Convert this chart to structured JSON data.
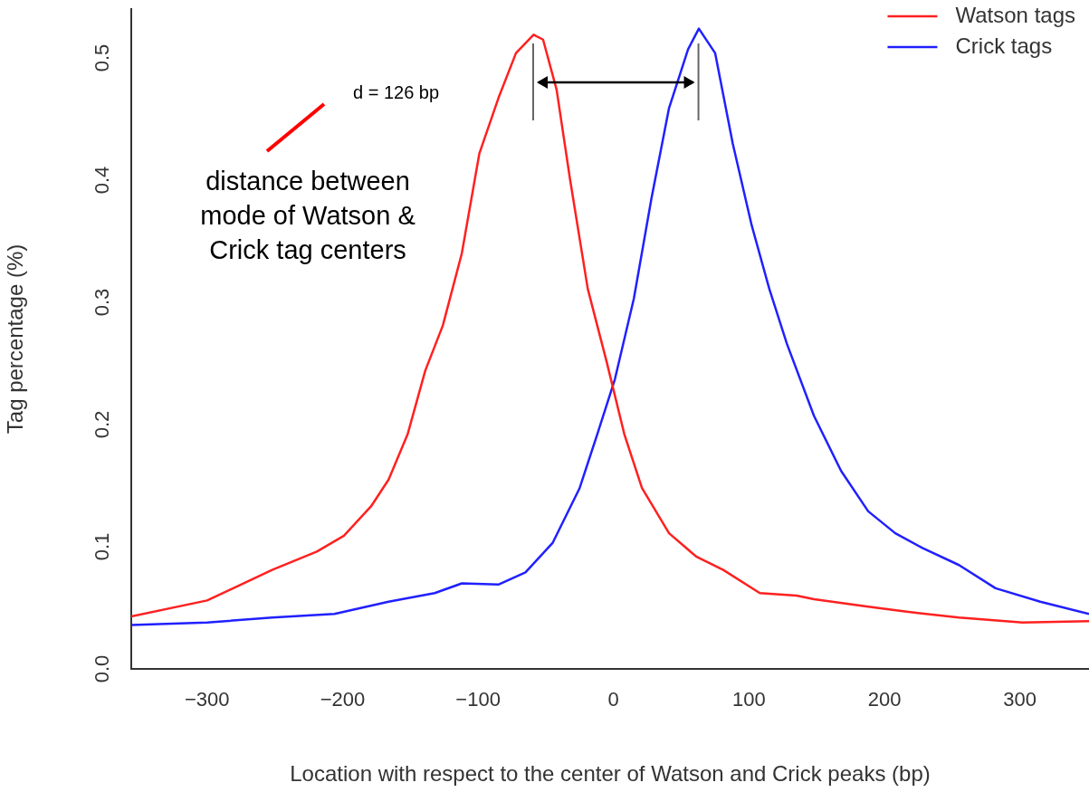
{
  "chart_data": {
    "type": "line",
    "xlabel": "Location with respect to the center of Watson and Crick peaks (bp)",
    "ylabel": "Tag percentage (%)",
    "xlim": [
      -356,
      351
    ],
    "xticks": [
      -300,
      -200,
      -100,
      0,
      100,
      200,
      300
    ],
    "ylim": [
      0,
      0.54
    ],
    "yticks": [
      {
        "value": 0,
        "label": "0.0"
      },
      0.1,
      0.2,
      0.3,
      0.4,
      0.5
    ],
    "legend": "top right",
    "grid": false,
    "marker": "none",
    "line_style": "solid",
    "annotations": [
      "d = 126 bp",
      "distance between mode of Watson & Crick tag centers"
    ],
    "series": [
      {
        "name": "Watson tags",
        "color": "#ff2020",
        "x": [
          -356,
          -300,
          -252,
          -219,
          -199,
          -179,
          -166,
          -152,
          -139,
          -126,
          -112,
          -99,
          -85,
          -72,
          -59,
          -52,
          -42,
          -32,
          -19,
          -5,
          8,
          21,
          41,
          61,
          81,
          108,
          135,
          148,
          188,
          215,
          255,
          302,
          351
        ],
        "values": [
          0.043,
          0.056,
          0.081,
          0.096,
          0.109,
          0.133,
          0.155,
          0.192,
          0.244,
          0.281,
          0.34,
          0.422,
          0.467,
          0.504,
          0.519,
          0.515,
          0.474,
          0.4,
          0.311,
          0.251,
          0.192,
          0.148,
          0.111,
          0.092,
          0.081,
          0.062,
          0.06,
          0.057,
          0.051,
          0.047,
          0.042,
          0.038,
          0.039
        ]
      },
      {
        "name": "Crick tags",
        "color": "#2020ff",
        "x": [
          -356,
          -300,
          -252,
          -206,
          -166,
          -132,
          -112,
          -85,
          -65,
          -45,
          -25,
          -12,
          1,
          15,
          28,
          41,
          55,
          63,
          75,
          88,
          102,
          115,
          128,
          148,
          168,
          188,
          208,
          228,
          255,
          282,
          315,
          351
        ],
        "values": [
          0.036,
          0.038,
          0.042,
          0.045,
          0.055,
          0.062,
          0.07,
          0.069,
          0.079,
          0.103,
          0.148,
          0.192,
          0.237,
          0.303,
          0.385,
          0.459,
          0.507,
          0.524,
          0.504,
          0.43,
          0.363,
          0.311,
          0.266,
          0.207,
          0.162,
          0.129,
          0.111,
          0.099,
          0.085,
          0.066,
          0.055,
          0.045
        ]
      }
    ]
  }
}
